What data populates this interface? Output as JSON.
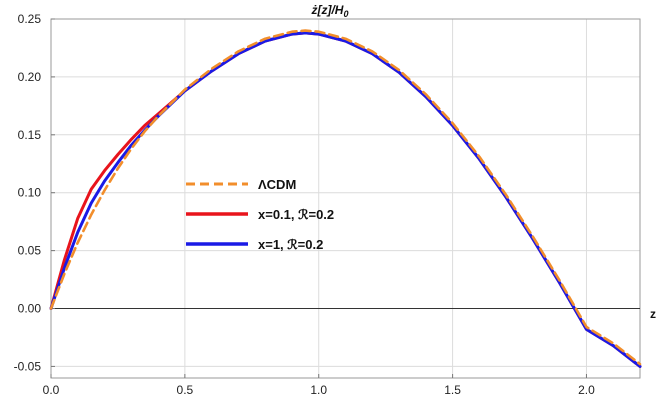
{
  "chart_data": {
    "type": "line",
    "title": "ż[z]/H",
    "title_sub": "0",
    "xlabel": "z",
    "ylabel": "",
    "xlim": [
      0,
      2.2
    ],
    "ylim": [
      -0.06,
      0.25
    ],
    "xticks": [
      "0.0",
      "0.5",
      "1.0",
      "1.5",
      "2.0"
    ],
    "xtick_values": [
      0,
      0.5,
      1.0,
      1.5,
      2.0
    ],
    "yticks": [
      "-0.05",
      "0.00",
      "0.05",
      "0.10",
      "0.15",
      "0.20",
      "0.25"
    ],
    "ytick_values": [
      -0.05,
      0,
      0.05,
      0.1,
      0.15,
      0.2,
      0.25
    ],
    "grid": true,
    "legend_position": "center-left",
    "series": [
      {
        "name": "ΛCDM",
        "color": "#f28e2b",
        "style": "dashed",
        "x": [
          0,
          0.05,
          0.1,
          0.15,
          0.2,
          0.25,
          0.3,
          0.35,
          0.4,
          0.5,
          0.6,
          0.7,
          0.8,
          0.9,
          0.95,
          1.0,
          1.1,
          1.2,
          1.3,
          1.4,
          1.5,
          1.6,
          1.7,
          1.8,
          1.9,
          2.0,
          2.1,
          2.2
        ],
        "y": [
          0,
          0.03,
          0.057,
          0.081,
          0.102,
          0.121,
          0.138,
          0.153,
          0.166,
          0.189,
          0.207,
          0.222,
          0.233,
          0.239,
          0.24,
          0.239,
          0.233,
          0.222,
          0.206,
          0.185,
          0.16,
          0.131,
          0.098,
          0.062,
          0.024,
          -0.016,
          -0.03,
          -0.048
        ]
      },
      {
        "name": "x=0.1, ℛ=0.2",
        "color": "#e8141c",
        "style": "solid",
        "x": [
          0,
          0.05,
          0.1,
          0.15,
          0.2,
          0.25,
          0.3,
          0.35,
          0.4,
          0.5,
          0.6,
          0.7,
          0.8,
          0.9,
          0.95,
          1.0,
          1.1,
          1.2,
          1.3,
          1.4,
          1.5,
          1.6,
          1.7,
          1.8,
          1.9,
          2.0,
          2.1,
          2.2
        ],
        "y": [
          0,
          0.042,
          0.078,
          0.103,
          0.119,
          0.133,
          0.146,
          0.158,
          0.168,
          0.188,
          0.205,
          0.22,
          0.231,
          0.237,
          0.238,
          0.237,
          0.231,
          0.22,
          0.204,
          0.183,
          0.158,
          0.129,
          0.096,
          0.06,
          0.022,
          -0.018,
          -0.032,
          -0.05
        ]
      },
      {
        "name": "x=1, ℛ=0.2",
        "color": "#1a1ae6",
        "style": "solid",
        "x": [
          0,
          0.05,
          0.1,
          0.15,
          0.2,
          0.25,
          0.3,
          0.35,
          0.4,
          0.5,
          0.6,
          0.7,
          0.8,
          0.9,
          0.95,
          1.0,
          1.1,
          1.2,
          1.3,
          1.4,
          1.5,
          1.6,
          1.7,
          1.8,
          1.9,
          2.0,
          2.1,
          2.2
        ],
        "y": [
          0,
          0.035,
          0.066,
          0.091,
          0.11,
          0.126,
          0.141,
          0.154,
          0.166,
          0.188,
          0.205,
          0.22,
          0.231,
          0.237,
          0.238,
          0.237,
          0.231,
          0.22,
          0.204,
          0.183,
          0.158,
          0.129,
          0.096,
          0.06,
          0.022,
          -0.018,
          -0.032,
          -0.05
        ]
      }
    ]
  }
}
